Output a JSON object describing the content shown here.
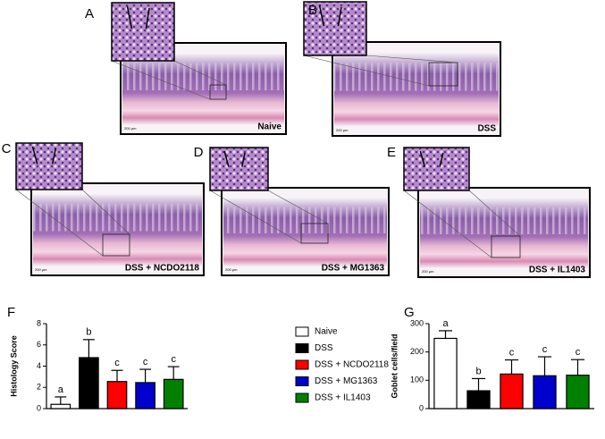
{
  "panels": [
    {
      "letter": "A",
      "label": "Naive",
      "scale": "200 µm"
    },
    {
      "letter": "B",
      "label": "DSS",
      "scale": "200 µm"
    },
    {
      "letter": "C",
      "label": "DSS + NCDO2118",
      "scale": "200 µm"
    },
    {
      "letter": "D",
      "label": "DSS + MG1363",
      "scale": "200 µm"
    },
    {
      "letter": "E",
      "label": "DSS + IL1403",
      "scale": "200 µm"
    }
  ],
  "legend": {
    "names": [
      "Naive",
      "DSS",
      "DSS + NCDO2118",
      "DSS + MG1363",
      "DSS + IL1403"
    ],
    "colors": [
      "#ffffff",
      "#000000",
      "#ff0000",
      "#0000cc",
      "#008000"
    ]
  },
  "chart_data": [
    {
      "type": "bar",
      "panel": "F",
      "y_label": "Histology Score",
      "values": [
        0.4,
        4.8,
        2.55,
        2.45,
        2.75
      ],
      "errors": [
        0.7,
        1.7,
        1.05,
        1.25,
        1.2
      ],
      "annotations": [
        "a",
        "b",
        "c",
        "c",
        "c"
      ],
      "ylim": [
        0,
        8
      ],
      "yticks": [
        0,
        2,
        4,
        6,
        8
      ]
    },
    {
      "type": "bar",
      "panel": "G",
      "y_label": "Goblet cells/field",
      "values": [
        248,
        63,
        122,
        116,
        118
      ],
      "errors": [
        27,
        43,
        50,
        67,
        55
      ],
      "annotations": [
        "a",
        "b",
        "c",
        "c",
        "c"
      ],
      "ylim": [
        0,
        300
      ],
      "yticks": [
        0,
        100,
        200,
        300
      ]
    }
  ]
}
